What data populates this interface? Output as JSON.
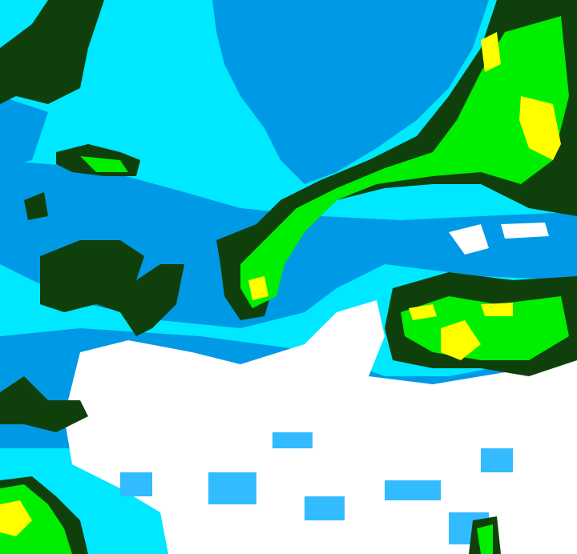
{
  "palette": {
    "deep_blue": "#0099e6",
    "cyan": "#00e8ff",
    "light_blue": "#33bbff",
    "dark_green": "#0f3f0a",
    "green": "#00ee00",
    "yellow": "#ffff00",
    "white": "#ffffff"
  }
}
